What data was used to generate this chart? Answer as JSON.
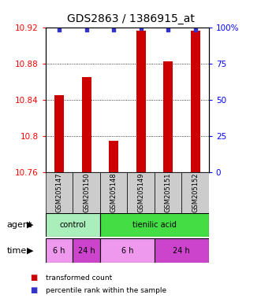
{
  "title": "GDS2863 / 1386915_at",
  "samples": [
    "GSM205147",
    "GSM205150",
    "GSM205148",
    "GSM205149",
    "GSM205151",
    "GSM205152"
  ],
  "bar_values": [
    10.845,
    10.865,
    10.795,
    10.916,
    10.882,
    10.916
  ],
  "percentile_values": [
    98,
    98,
    98,
    99,
    98,
    98
  ],
  "ylim_left": [
    10.76,
    10.92
  ],
  "ylim_right": [
    0,
    100
  ],
  "yticks_left": [
    10.76,
    10.8,
    10.84,
    10.88,
    10.92
  ],
  "ytick_labels_left": [
    "10.76",
    "10.8",
    "10.84",
    "10.88",
    "10.92"
  ],
  "yticks_right": [
    0,
    25,
    50,
    75,
    100
  ],
  "ytick_labels_right": [
    "0",
    "25",
    "50",
    "75",
    "100%"
  ],
  "bar_color": "#cc0000",
  "dot_color": "#3333cc",
  "bar_bottom": 10.76,
  "agent_labels": [
    {
      "text": "control",
      "start": 0,
      "end": 2,
      "color": "#aaeebb"
    },
    {
      "text": "tienilic acid",
      "start": 2,
      "end": 6,
      "color": "#44dd44"
    }
  ],
  "time_labels": [
    {
      "text": "6 h",
      "start": 0,
      "end": 1,
      "color": "#ee99ee"
    },
    {
      "text": "24 h",
      "start": 1,
      "end": 2,
      "color": "#cc44cc"
    },
    {
      "text": "6 h",
      "start": 2,
      "end": 4,
      "color": "#ee99ee"
    },
    {
      "text": "24 h",
      "start": 4,
      "end": 6,
      "color": "#cc44cc"
    }
  ],
  "legend_items": [
    {
      "label": "transformed count",
      "color": "#cc0000"
    },
    {
      "label": "percentile rank within the sample",
      "color": "#3333cc"
    }
  ],
  "agent_row_label": "agent",
  "time_row_label": "time",
  "title_fontsize": 10,
  "tick_fontsize": 7.5,
  "sample_fontsize": 6,
  "row_label_fontsize": 8,
  "row_text_fontsize": 7,
  "legend_fontsize": 6.5
}
